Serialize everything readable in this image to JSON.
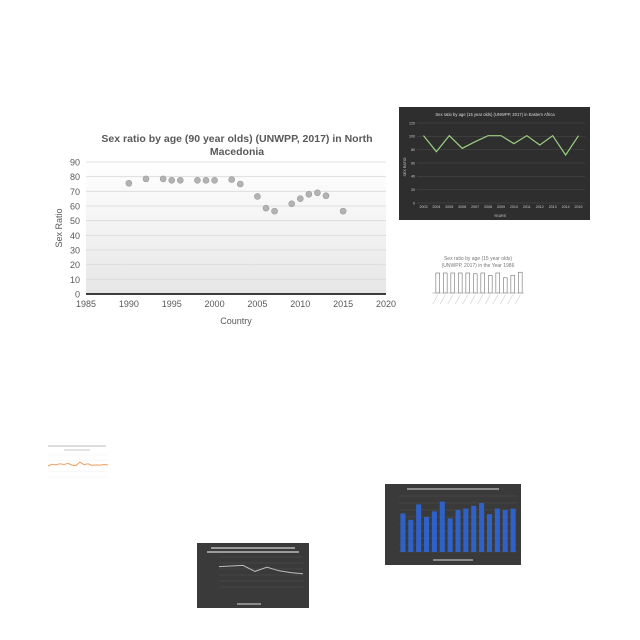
{
  "chart_data": [
    {
      "id": "main",
      "type": "scatter",
      "title": "Sex ratio by age (90 year olds) (UNWPP, 2017) in North Macedonia",
      "title_lines": [
        "Sex ratio by age (90 year olds) (UNWPP, 2017) in North",
        "Macedonia"
      ],
      "xlabel": "Country",
      "ylabel": "Sex Ratio",
      "xlim": [
        1985,
        2020
      ],
      "ylim": [
        0,
        90
      ],
      "xticks": [
        1985,
        1990,
        1995,
        2000,
        2005,
        2010,
        2015,
        2020
      ],
      "yticks": [
        0,
        10,
        20,
        30,
        40,
        50,
        60,
        70,
        80,
        90
      ],
      "grid": true,
      "x": [
        1990,
        1992,
        1994,
        1995,
        1996,
        1998,
        1999,
        2000,
        2002,
        2003,
        2005,
        2006,
        2007,
        2009,
        2010,
        2011,
        2012,
        2013,
        2015
      ],
      "y": [
        75.5,
        78.5,
        78.5,
        77.5,
        77.5,
        77.5,
        77.5,
        77.5,
        78,
        75,
        66.5,
        58.5,
        56.5,
        61.5,
        65,
        68,
        69,
        67,
        56.5
      ]
    },
    {
      "id": "top-right",
      "type": "line",
      "title": "Sex ratio by age (15 year olds) (UNWPP, 2017) in Eastern Africa",
      "xlabel": "YEARS",
      "ylabel": "SEX RATIO",
      "ylim": [
        0,
        120
      ],
      "yticks": [
        0,
        20,
        40,
        60,
        80,
        100,
        120
      ],
      "categories": [
        "2003",
        "2004",
        "2005",
        "2006",
        "2007",
        "2008",
        "2009",
        "2010",
        "2011",
        "2012",
        "2013",
        "2014",
        "2015"
      ],
      "values": [
        101,
        77,
        101,
        82,
        92,
        101,
        101,
        89,
        101,
        87,
        101,
        72,
        101
      ],
      "colors": {
        "background": "#2e2e2e",
        "line": "#9ccf80"
      }
    },
    {
      "id": "mid-right",
      "type": "bar",
      "title_lines": [
        "Sex ratio by age (15 year olds)",
        "(UNWPP, 2017) in the Year 1986"
      ],
      "values": [
        100,
        100,
        100,
        100,
        100,
        96,
        100,
        88,
        100,
        76,
        88,
        104
      ],
      "ylim": [
        0,
        120
      ]
    },
    {
      "id": "mid-left",
      "type": "line",
      "values": [
        50,
        58,
        55,
        60,
        57,
        62,
        54,
        52,
        68,
        56,
        60,
        53,
        55,
        54,
        57,
        55
      ],
      "ylim": [
        0,
        100
      ],
      "colors": {
        "line": "#f0a060"
      }
    },
    {
      "id": "bottom-right",
      "type": "bar",
      "ylabel": "",
      "values": [
        55,
        46,
        68,
        50,
        58,
        72,
        48,
        60,
        62,
        66,
        70,
        54,
        62,
        60,
        62
      ],
      "ylim": [
        0,
        80
      ],
      "yticks": [
        0,
        10,
        20,
        30,
        40,
        50,
        60,
        70,
        80
      ],
      "colors": {
        "background": "#3a3a3a",
        "bar": "#2e62c8"
      }
    },
    {
      "id": "bottom-mid",
      "type": "line",
      "values": [
        68,
        70,
        72,
        52,
        66,
        54,
        48,
        44
      ],
      "ylim": [
        0,
        100
      ],
      "colors": {
        "background": "#3a3a3a",
        "line": "#bcbcbc"
      }
    }
  ]
}
